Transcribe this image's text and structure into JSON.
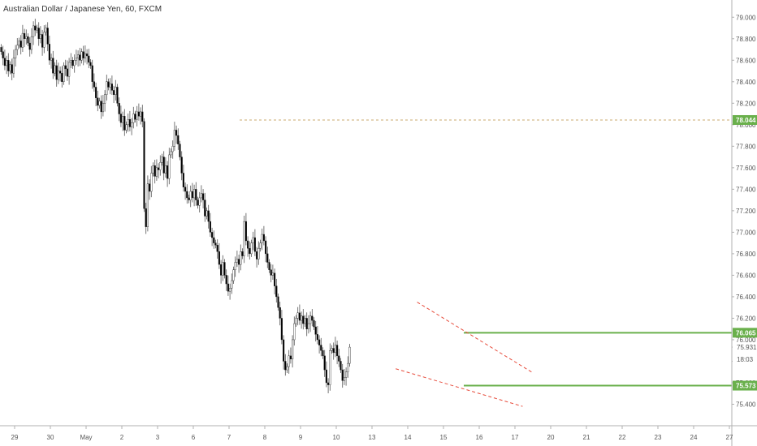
{
  "header": {
    "title": "Australian Dollar / Japanese Yen, 60, FXCM"
  },
  "colors": {
    "up": "#ffffff",
    "down": "#000000",
    "wick": "#555555",
    "level": "#6ab04c",
    "trend": "#e74c3c",
    "dotted": "#c9a96e",
    "grid": "#eeeeee"
  },
  "chart_data": {
    "type": "candlestick",
    "title": "Australian Dollar / Japanese Yen, 60, FXCM",
    "ylim": [
      75.2,
      79.1
    ],
    "y_ticks": [
      "79.000",
      "78.800",
      "78.600",
      "78.400",
      "78.200",
      "78.000",
      "77.800",
      "77.600",
      "77.400",
      "77.200",
      "77.000",
      "76.800",
      "76.600",
      "76.400",
      "76.200",
      "76.000",
      "75.931",
      "75.800",
      "75.600",
      "75.400"
    ],
    "x_ticks": [
      {
        "label": "29",
        "i": 0
      },
      {
        "label": "30",
        "i": 20
      },
      {
        "label": "May",
        "i": 40
      },
      {
        "label": "2",
        "i": 60
      },
      {
        "label": "3",
        "i": 80
      },
      {
        "label": "6",
        "i": 100
      },
      {
        "label": "7",
        "i": 120
      },
      {
        "label": "8",
        "i": 140
      },
      {
        "label": "9",
        "i": 160
      },
      {
        "label": "10",
        "i": 180
      },
      {
        "label": "13",
        "i": 200
      },
      {
        "label": "14",
        "i": 220
      },
      {
        "label": "15",
        "i": 240
      },
      {
        "label": "16",
        "i": 260
      },
      {
        "label": "17",
        "i": 280
      },
      {
        "label": "20",
        "i": 300
      },
      {
        "label": "21",
        "i": 320
      },
      {
        "label": "22",
        "i": 340
      },
      {
        "label": "23",
        "i": 360
      },
      {
        "label": "24",
        "i": 380
      },
      {
        "label": "27",
        "i": 400
      }
    ],
    "levels": [
      {
        "value": 78.044,
        "label": "78.044",
        "style": "dotted"
      },
      {
        "value": 76.065,
        "label": "76.065",
        "style": "solid"
      },
      {
        "value": 75.573,
        "label": "75.573",
        "style": "solid"
      }
    ],
    "price_labels": [
      {
        "value": 75.931,
        "label": "75.931"
      },
      {
        "value": 75.82,
        "label": "18:03"
      }
    ],
    "trendlines": [
      {
        "from": [
          233,
          76.35
        ],
        "to": [
          298,
          75.69
        ]
      },
      {
        "from": [
          221,
          75.73
        ],
        "to": [
          292,
          75.38
        ]
      }
    ],
    "closes": [
      78.68,
      78.62,
      78.55,
      78.6,
      78.5,
      78.56,
      78.48,
      78.62,
      78.7,
      78.74,
      78.78,
      78.72,
      78.85,
      78.8,
      78.82,
      78.76,
      78.7,
      78.82,
      78.92,
      78.88,
      78.9,
      78.8,
      78.84,
      78.72,
      78.86,
      78.9,
      78.75,
      78.6,
      78.62,
      78.48,
      78.55,
      78.42,
      78.5,
      78.48,
      78.4,
      78.55,
      78.52,
      78.45,
      78.58,
      78.6,
      78.55,
      78.6,
      78.62,
      78.65,
      78.6,
      78.68,
      78.62,
      78.66,
      78.64,
      78.58,
      78.55,
      78.4,
      78.35,
      78.25,
      78.18,
      78.22,
      78.12,
      78.2,
      78.28,
      78.4,
      78.35,
      78.38,
      78.32,
      78.28,
      78.35,
      78.2,
      78.1,
      78.02,
      78.08,
      77.95,
      78.0,
      78.05,
      77.98,
      78.02,
      78.1,
      78.05,
      78.12,
      78.08,
      78.12,
      78.03,
      77.22,
      77.05,
      77.45,
      77.38,
      77.55,
      77.62,
      77.52,
      77.6,
      77.58,
      77.65,
      77.7,
      77.55,
      77.62,
      77.5,
      77.72,
      77.75,
      77.8,
      77.95,
      77.9,
      77.82,
      77.7,
      77.55,
      77.42,
      77.38,
      77.32,
      77.3,
      77.38,
      77.32,
      77.4,
      77.3,
      77.25,
      77.32,
      77.36,
      77.3,
      77.15,
      77.2,
      77.1,
      77.0,
      76.95,
      76.9,
      76.88,
      76.82,
      76.7,
      76.6,
      76.72,
      76.6,
      76.52,
      76.45,
      76.48,
      76.55,
      76.65,
      76.72,
      76.75,
      76.7,
      76.82,
      76.78,
      77.1,
      76.92,
      76.85,
      76.8,
      76.9,
      76.95,
      76.82,
      76.75,
      76.85,
      76.9,
      76.98,
      76.92,
      76.8,
      76.72,
      76.65,
      76.6,
      76.62,
      76.5,
      76.4,
      76.3,
      76.2,
      76.0,
      75.8,
      75.72,
      75.75,
      75.85,
      75.82,
      76.0,
      76.15,
      76.2,
      76.25,
      76.18,
      76.22,
      76.15,
      76.2,
      76.1,
      76.15,
      76.22,
      76.18,
      76.12,
      76.05,
      76.0,
      75.95,
      75.9,
      75.85,
      75.72,
      75.6,
      75.58,
      75.9,
      75.92,
      75.88,
      75.95,
      75.85,
      75.8,
      75.72,
      75.62,
      75.65,
      75.7,
      75.78,
      75.931
    ],
    "times": []
  }
}
